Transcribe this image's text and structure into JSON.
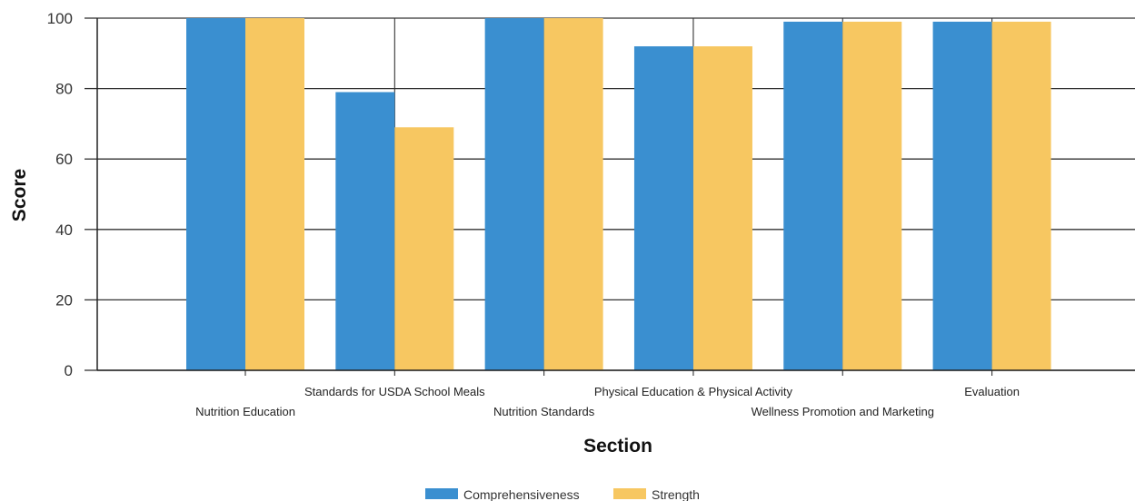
{
  "chart_data": {
    "type": "bar",
    "title": "",
    "xlabel": "Section",
    "ylabel": "Score",
    "ylim": [
      0,
      100
    ],
    "yticks": [
      0,
      20,
      40,
      60,
      80,
      100
    ],
    "grid": true,
    "legend_position": "bottom",
    "categories": [
      "Nutrition Education",
      "Standards for USDA School Meals",
      "Nutrition Standards",
      "Physical Education & Physical Activity",
      "Wellness Promotion and Marketing",
      "Evaluation"
    ],
    "series": [
      {
        "name": "Comprehensiveness",
        "color": "#3a8fd0",
        "values": [
          100,
          79,
          100,
          92,
          99,
          99
        ]
      },
      {
        "name": "Strength",
        "color": "#f7c761",
        "values": [
          100,
          69,
          100,
          92,
          99,
          99
        ]
      }
    ]
  }
}
